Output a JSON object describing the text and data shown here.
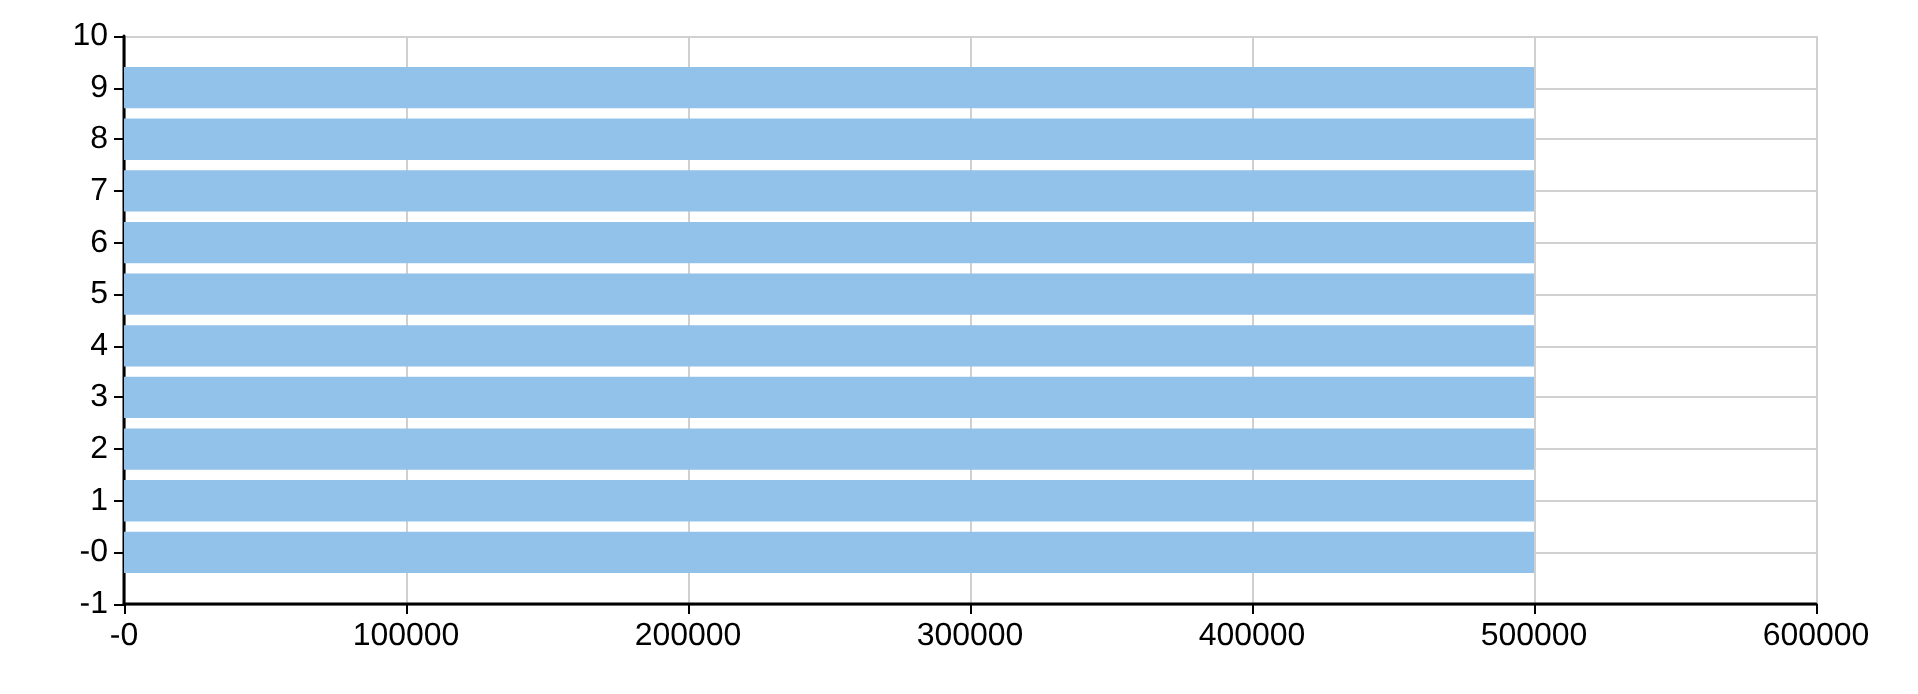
{
  "chart_data": {
    "type": "bar",
    "orientation": "horizontal",
    "x": [
      0,
      1,
      2,
      3,
      4,
      5,
      6,
      7,
      8,
      9
    ],
    "values": [
      500000,
      500000,
      500000,
      500000,
      500000,
      500000,
      500000,
      500000,
      500000,
      500000
    ],
    "color": "#92c1ea",
    "xlim": [
      0,
      600000
    ],
    "xticks": [
      {
        "value": 0,
        "label": "-0"
      },
      100000,
      200000,
      300000,
      400000,
      500000,
      600000
    ],
    "ylim": [
      -1,
      10
    ],
    "yticks": [
      -1,
      {
        "value": 0,
        "label": "-0"
      },
      1,
      2,
      3,
      4,
      5,
      6,
      7,
      8,
      9,
      10
    ],
    "grid": true
  }
}
